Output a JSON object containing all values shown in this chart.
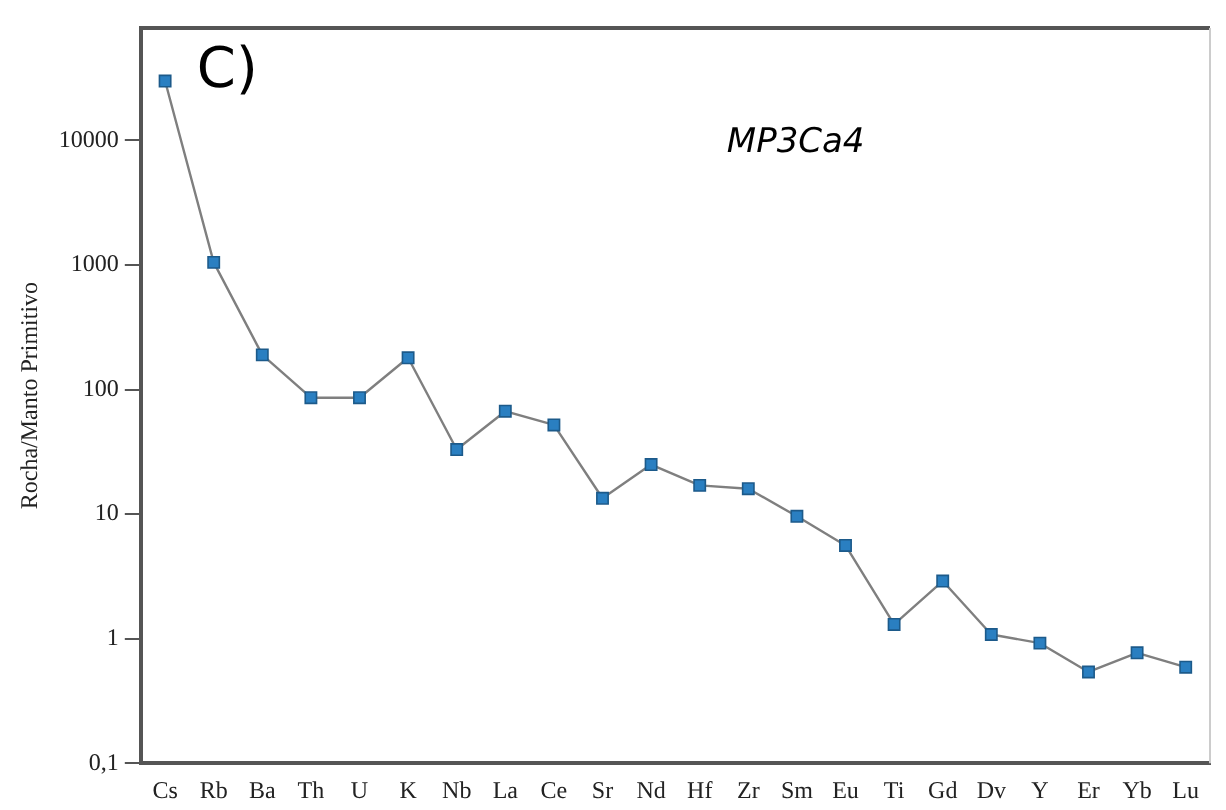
{
  "chart_data": {
    "type": "line",
    "ylabel": "Rocha/Manto Primitivo",
    "annotations": [
      "C)",
      "MP3Ca4"
    ],
    "categories": [
      "Cs",
      "Rb",
      "Ba",
      "Th",
      "U",
      "K",
      "Nb",
      "La",
      "Ce",
      "Sr",
      "Nd",
      "Hf",
      "Zr",
      "Sm",
      "Eu",
      "Ti",
      "Gd",
      "Dv",
      "Y",
      "Er",
      "Yb",
      "Lu"
    ],
    "series": [
      {
        "color": "#2a7fc1",
        "values": [
          30000,
          1050,
          190,
          86,
          86,
          180,
          33,
          67,
          52,
          13.4,
          25,
          17,
          16,
          9.6,
          5.6,
          1.3,
          2.9,
          1.08,
          0.92,
          0.54,
          0.77,
          0.59
        ]
      }
    ],
    "log": "y",
    "ylim": [
      0.1,
      80000
    ],
    "yticks": [
      {
        "value": 0.1,
        "label": "0,1"
      },
      1,
      10,
      100,
      1000,
      10000
    ],
    "grid": false,
    "legend": false,
    "marker": "square",
    "line_style": "solid"
  }
}
